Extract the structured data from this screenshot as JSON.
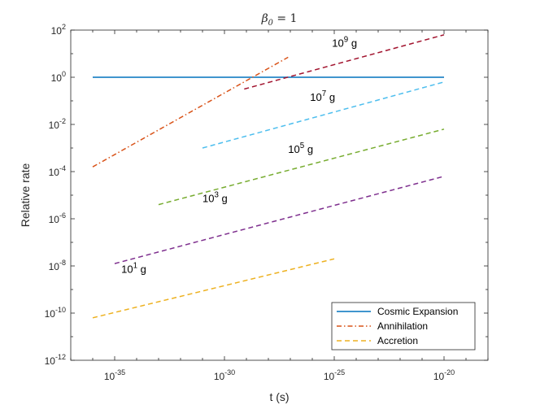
{
  "chart_data": {
    "type": "line",
    "title": "β₀ = 1",
    "title_parts": {
      "symbol": "β",
      "subscript": "0",
      "rest": " = 1"
    },
    "xlabel": "t (s)",
    "ylabel": "Relative rate",
    "xscale": "log",
    "yscale": "log",
    "xlim_exp": [
      -37,
      -18
    ],
    "ylim_exp": [
      -12,
      2
    ],
    "xticks": [
      {
        "base": "10",
        "exp": "-35",
        "value_exp": -35
      },
      {
        "base": "10",
        "exp": "-30",
        "value_exp": -30
      },
      {
        "base": "10",
        "exp": "-25",
        "value_exp": -25
      },
      {
        "base": "10",
        "exp": "-20",
        "value_exp": -20
      }
    ],
    "yticks": [
      {
        "base": "10",
        "exp": "2",
        "value_exp": 2
      },
      {
        "base": "10",
        "exp": "0",
        "value_exp": 0
      },
      {
        "base": "10",
        "exp": "-2",
        "value_exp": -2
      },
      {
        "base": "10",
        "exp": "-4",
        "value_exp": -4
      },
      {
        "base": "10",
        "exp": "-6",
        "value_exp": -6
      },
      {
        "base": "10",
        "exp": "-8",
        "value_exp": -8
      },
      {
        "base": "10",
        "exp": "-10",
        "value_exp": -10
      },
      {
        "base": "10",
        "exp": "-12",
        "value_exp": -12
      }
    ],
    "grid": false,
    "legend_position": "bottom-right",
    "series": [
      {
        "name": "Cosmic Expansion",
        "color": "#0072BD",
        "style": "solid",
        "legend": true,
        "points_log10": [
          [
            -36,
            0
          ],
          [
            -20,
            0
          ]
        ]
      },
      {
        "name": "Annihilation",
        "color": "#D95319",
        "style": "dashdot",
        "legend": true,
        "points_log10": [
          [
            -36,
            -3.8
          ],
          [
            -27.1,
            0.85
          ]
        ]
      },
      {
        "name": "Accretion",
        "color": "#EDB120",
        "style": "dashed",
        "legend": true,
        "mass_label": {
          "base": "10",
          "exp": "1",
          "unit": "g"
        },
        "points_log10": [
          [
            -36,
            -10.2
          ],
          [
            -25,
            -7.7
          ]
        ]
      },
      {
        "name": "Accretion 10^3 g",
        "color": "#7E2F8E",
        "style": "dashed",
        "legend": false,
        "mass_label": {
          "base": "10",
          "exp": "3",
          "unit": "g"
        },
        "points_log10": [
          [
            -35,
            -7.9
          ],
          [
            -20,
            -4.2
          ]
        ]
      },
      {
        "name": "Accretion 10^5 g",
        "color": "#77AC30",
        "style": "dashed",
        "legend": false,
        "mass_label": {
          "base": "10",
          "exp": "5",
          "unit": "g"
        },
        "points_log10": [
          [
            -33,
            -5.4
          ],
          [
            -20,
            -2.2
          ]
        ]
      },
      {
        "name": "Accretion 10^7 g",
        "color": "#4DBEEE",
        "style": "dashed",
        "legend": false,
        "mass_label": {
          "base": "10",
          "exp": "7",
          "unit": "g"
        },
        "points_log10": [
          [
            -31,
            -3.0
          ],
          [
            -20,
            -0.2
          ]
        ]
      },
      {
        "name": "Accretion 10^9 g",
        "color": "#A2142F",
        "style": "dashed",
        "legend": false,
        "mass_label": {
          "base": "10",
          "exp": "9",
          "unit": "g"
        },
        "points_log10": [
          [
            -29.1,
            -0.5
          ],
          [
            -20,
            1.8
          ]
        ]
      }
    ],
    "annotations": [
      {
        "series_index": 2,
        "text_base": "10",
        "text_exp": "1",
        "unit": "g",
        "at_log10": [
          -34.7,
          -8.3
        ]
      },
      {
        "series_index": 3,
        "text_base": "10",
        "text_exp": "3",
        "unit": "g",
        "at_log10": [
          -31.0,
          -5.3
        ]
      },
      {
        "series_index": 4,
        "text_base": "10",
        "text_exp": "5",
        "unit": "g",
        "at_log10": [
          -27.1,
          -3.2
        ]
      },
      {
        "series_index": 5,
        "text_base": "10",
        "text_exp": "7",
        "unit": "g",
        "at_log10": [
          -26.1,
          -1.0
        ]
      },
      {
        "series_index": 6,
        "text_base": "10",
        "text_exp": "9",
        "unit": "g",
        "at_log10": [
          -25.1,
          1.3
        ]
      }
    ]
  }
}
